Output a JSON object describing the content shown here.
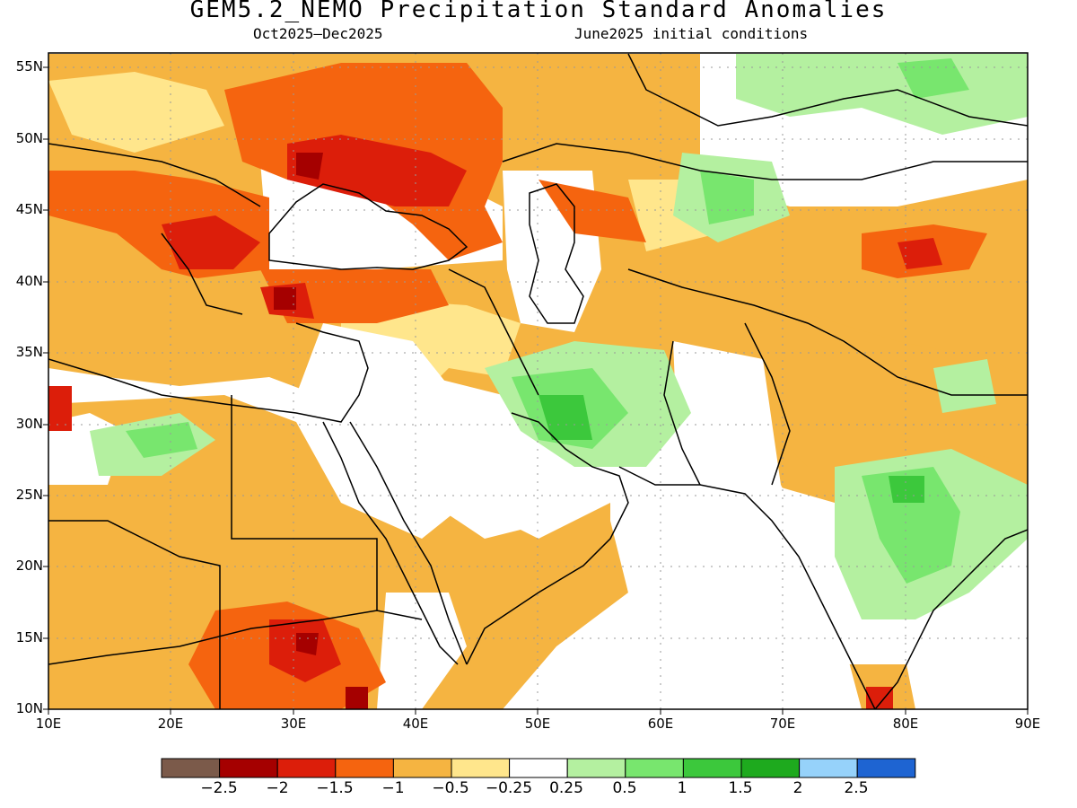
{
  "title": "GEM5.2_NEMO Precipitation Standard Anomalies",
  "subtitle_period": "Oct2025–Dec2025",
  "subtitle_init": "June2025 initial conditions",
  "map": {
    "lon_range": [
      10,
      90
    ],
    "lat_range": [
      10,
      56
    ],
    "lat_ticks": [
      "10N",
      "15N",
      "20N",
      "25N",
      "30N",
      "35N",
      "40N",
      "45N",
      "50N",
      "55N"
    ],
    "lon_ticks": [
      "10E",
      "20E",
      "30E",
      "40E",
      "50E",
      "60E",
      "70E",
      "80E",
      "90E"
    ]
  },
  "legend": {
    "colors": [
      "#7b5a4a",
      "#a50000",
      "#dc1e0a",
      "#f5640f",
      "#f5b441",
      "#ffe68c",
      "#ffffff",
      "#b4f0a0",
      "#78e66e",
      "#3cc83c",
      "#1eaa1e",
      "#96d2fa",
      "#1e64d2"
    ],
    "labels": [
      "−2.5",
      "−2",
      "−1.5",
      "−1",
      "−0.5",
      "−0.25",
      "0.25",
      "0.5",
      "1",
      "1.5",
      "2",
      "2.5"
    ]
  }
}
